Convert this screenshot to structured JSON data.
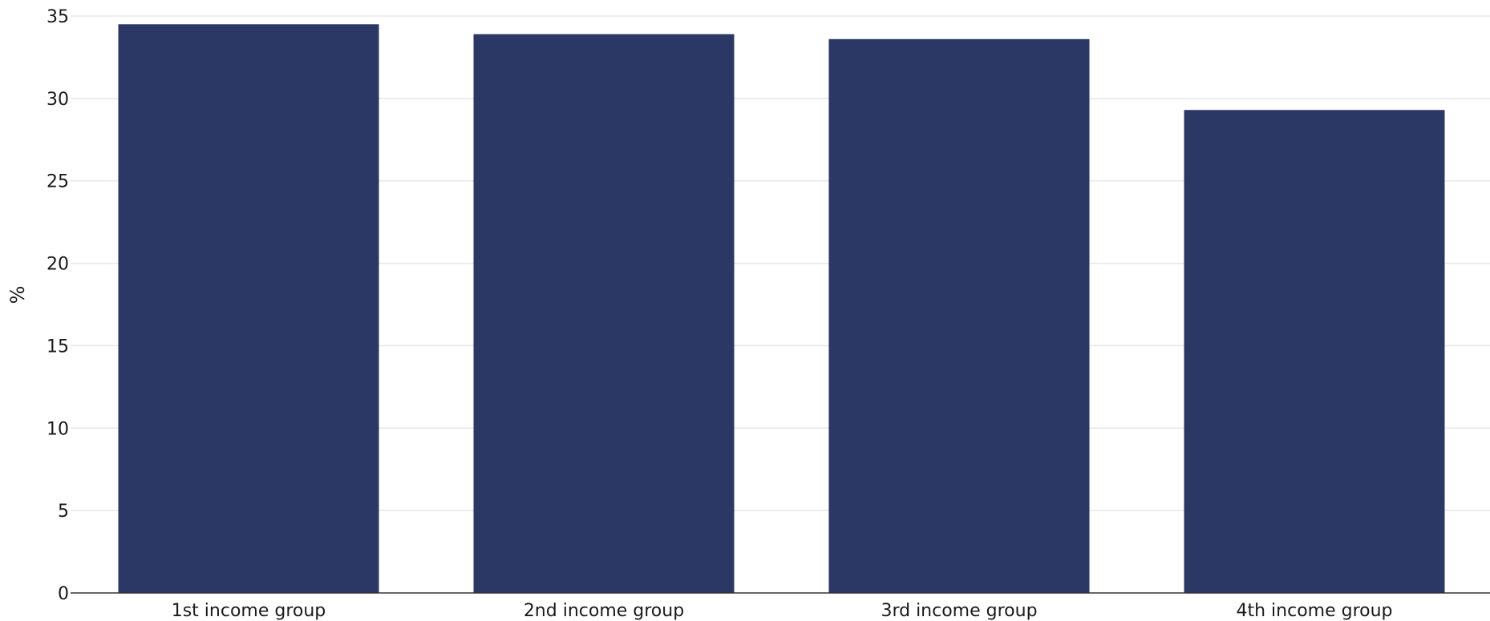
{
  "chart_data": {
    "type": "bar",
    "title": "",
    "xlabel": "",
    "ylabel": "%",
    "categories": [
      "1st income group",
      "2nd income group",
      "3rd income group",
      "4th income group"
    ],
    "series": [
      {
        "values": [
          34.5,
          33.9,
          33.6,
          29.3
        ],
        "color": "#2b3764"
      }
    ],
    "ylim": [
      0,
      35
    ],
    "yticks": [
      0,
      5,
      10,
      15,
      20,
      25,
      30,
      35
    ],
    "grid": true,
    "legend": "none",
    "colors": {
      "bar": "#2b3764",
      "grid": "#e6e6e6",
      "axis": "#333333",
      "text": "#1a1a1a"
    }
  }
}
